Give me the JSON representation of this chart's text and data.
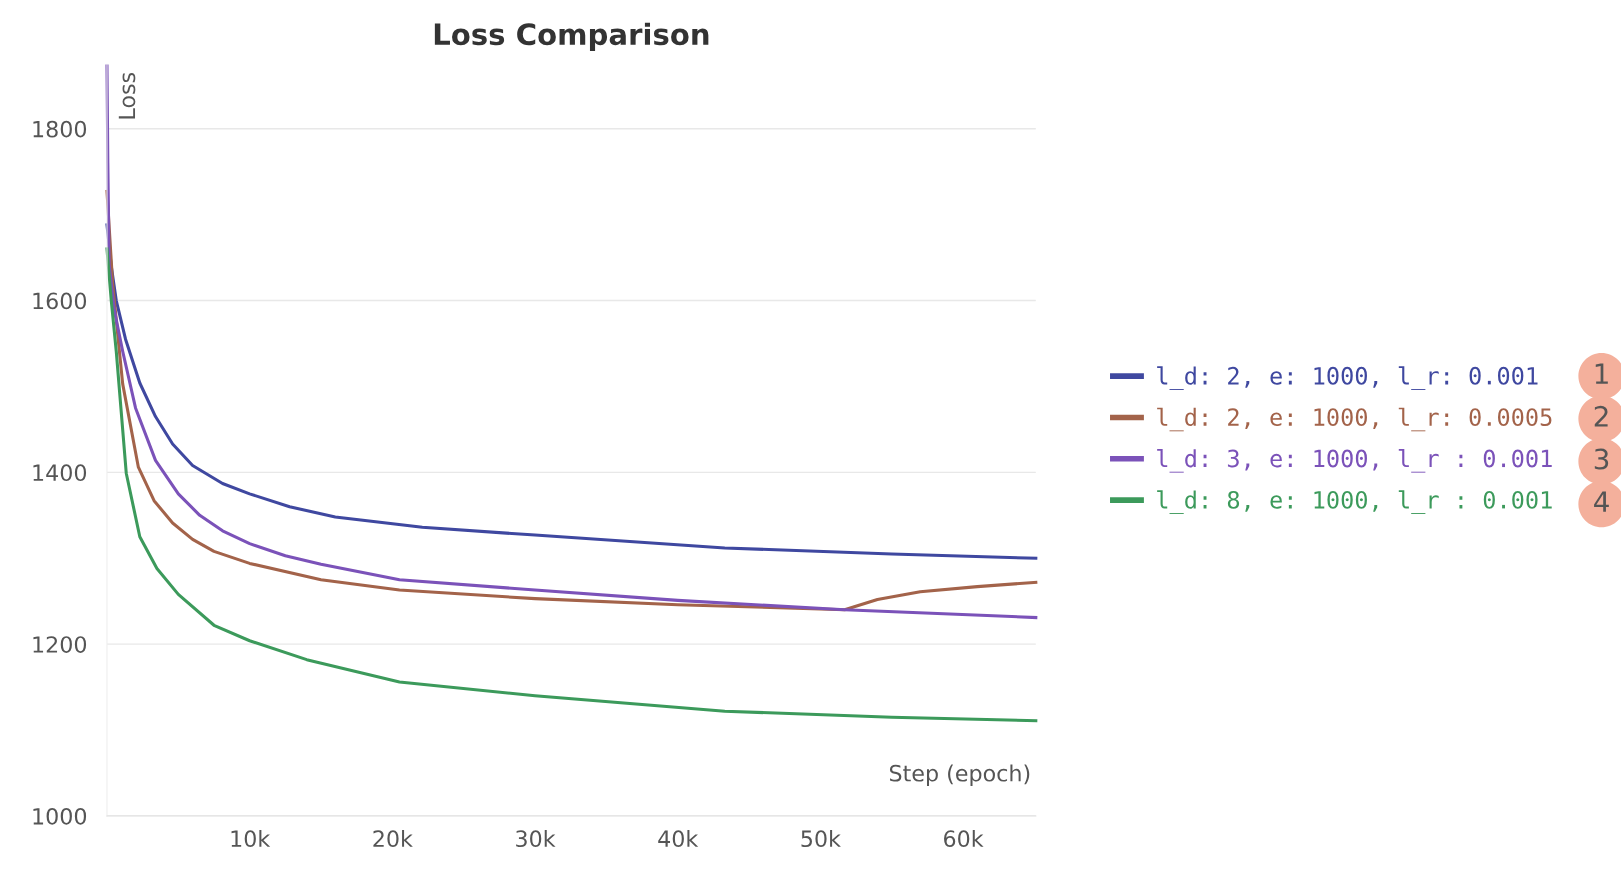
{
  "chart_data": {
    "type": "line",
    "title": "Loss Comparison",
    "xlabel": "Step (epoch)",
    "ylabel": "Loss",
    "xlim": [
      0,
      65100
    ],
    "ylim": [
      1000,
      1875
    ],
    "xticks": [
      {
        "value": 10000,
        "label": "10k"
      },
      {
        "value": 20000,
        "label": "20k"
      },
      {
        "value": 30000,
        "label": "30k"
      },
      {
        "value": 40000,
        "label": "40k"
      },
      {
        "value": 50000,
        "label": "50k"
      },
      {
        "value": 60000,
        "label": "60k"
      }
    ],
    "yticks": [
      1000,
      1200,
      1400,
      1600,
      1800
    ],
    "grid": "y",
    "legend": "right",
    "line_style": "solid",
    "annotations": [
      "1",
      "2",
      "3",
      "4"
    ],
    "series": [
      {
        "name": "l_d: 2, e: 1000, l_r: 0.001",
        "color": "#3f48a0",
        "x": [
          0,
          300,
          650,
          1300,
          2300,
          3400,
          4600,
          6000,
          8100,
          10000,
          12800,
          16000,
          22100,
          30000,
          43300,
          55000,
          65100
        ],
        "values": [
          1688,
          1640,
          1600,
          1555,
          1504,
          1465,
          1433,
          1408,
          1387,
          1375,
          1360,
          1348,
          1336,
          1327,
          1312,
          1305,
          1300
        ]
      },
      {
        "name": "l_d: 2, e: 1000, l_r: 0.0005",
        "color": "#a3634a",
        "x": [
          0,
          400,
          1100,
          2200,
          3300,
          4600,
          6000,
          7500,
          10000,
          15000,
          20500,
          30000,
          40000,
          51700,
          54000,
          57000,
          61000,
          65100
        ],
        "values": [
          1727,
          1619,
          1503,
          1406,
          1367,
          1341,
          1322,
          1308,
          1294,
          1275,
          1263,
          1253,
          1246,
          1240,
          1252,
          1261,
          1267,
          1272
        ]
      },
      {
        "name": "l_d: 3, e: 1000, l_r : 0.001",
        "color": "#7b52b9",
        "x": [
          0,
          60,
          150,
          500,
          1100,
          2000,
          3400,
          5000,
          6500,
          8100,
          10000,
          12500,
          15000,
          20500,
          30000,
          40000,
          51700,
          65100
        ],
        "values": [
          1873,
          1760,
          1642,
          1590,
          1541,
          1475,
          1414,
          1375,
          1350,
          1332,
          1317,
          1303,
          1293,
          1275,
          1263,
          1251,
          1240,
          1231
        ]
      },
      {
        "name": "l_d: 8, e: 1000, l_r : 0.001",
        "color": "#3c9a5b",
        "x": [
          0,
          300,
          650,
          1350,
          2300,
          3500,
          5000,
          7500,
          10000,
          14000,
          20500,
          30000,
          43300,
          55000,
          65100
        ],
        "values": [
          1660,
          1600,
          1541,
          1399,
          1325,
          1288,
          1258,
          1222,
          1204,
          1182,
          1156,
          1140,
          1122,
          1115,
          1111
        ]
      }
    ]
  }
}
